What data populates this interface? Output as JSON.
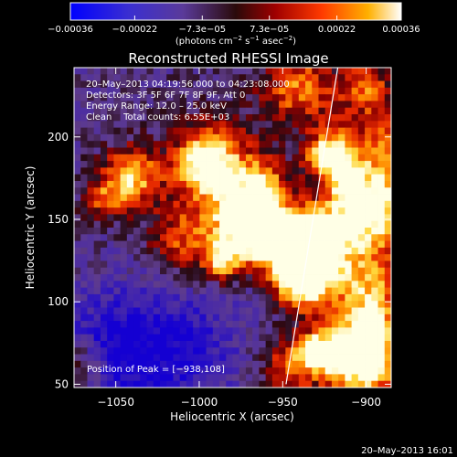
{
  "chart_data": {
    "type": "heatmap",
    "title": "Reconstructed RHESSI Image",
    "xlabel": "Heliocentric X (arcsec)",
    "ylabel": "Heliocentric Y (arcsec)",
    "xlim": [
      -1075,
      -885
    ],
    "ylim": [
      48,
      242
    ],
    "x_ticks": [
      -1050,
      -1000,
      -950,
      -900
    ],
    "x_tick_labels": [
      "−1050",
      "−1000",
      "−950",
      "−900"
    ],
    "y_ticks": [
      50,
      100,
      150,
      200
    ],
    "y_tick_labels": [
      "50",
      "100",
      "150",
      "200"
    ],
    "colorbar": {
      "range": [
        -0.00036,
        0.00036
      ],
      "ticks": [
        -0.00036,
        -0.00022,
        -7.3e-05,
        7.3e-05,
        0.00022,
        0.00036
      ],
      "tick_labels": [
        "−0.00036",
        "−0.00022",
        "−7.3e−05",
        "7.3e−05",
        "0.00022",
        "0.00036"
      ],
      "units_parts": [
        "(photons cm",
        "−2",
        " s",
        "−1",
        " asec",
        "−2",
        ")"
      ]
    },
    "annotations": [
      "20–May–2013 04:19:56.000 to 04:23:08.000",
      "Detectors: 3F 5F 6F 7F 8F 9F, Att 0",
      "Energy Range: 12.0 – 25.0 keV",
      "Clean    Total counts: 6.55E+03"
    ],
    "peak_label": "Position of Peak = [−938,108]",
    "peak": [
      -938,
      108
    ],
    "limb_line": [
      [
        -948,
        50
      ],
      [
        -917,
        242
      ]
    ],
    "footer": "20–May–2013 16:01"
  }
}
